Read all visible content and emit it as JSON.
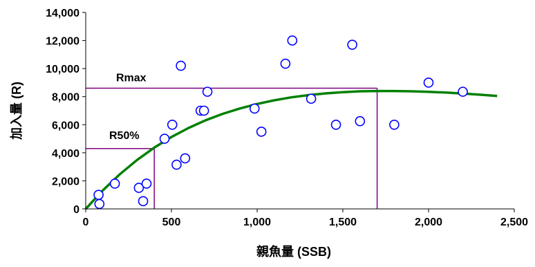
{
  "chart_data": {
    "type": "scatter",
    "xlabel": "親魚量 (SSB)",
    "ylabel": "加入量 (R)",
    "xlim": [
      0,
      2500
    ],
    "ylim": [
      0,
      14000
    ],
    "x_ticks": [
      "0",
      "500",
      "1,000",
      "1,500",
      "2,000",
      "2,500"
    ],
    "y_ticks": [
      "0",
      "2,000",
      "4,000",
      "6,000",
      "8,000",
      "10,000",
      "12,000",
      "14,000"
    ],
    "grid": false,
    "legend": "none",
    "series": [
      {
        "type": "scatter",
        "marker": "open-circle",
        "color": "#0000ff",
        "points": [
          [
            75,
            1000
          ],
          [
            80,
            350
          ],
          [
            170,
            1800
          ],
          [
            310,
            1500
          ],
          [
            335,
            550
          ],
          [
            355,
            1800
          ],
          [
            460,
            5000
          ],
          [
            505,
            6000
          ],
          [
            530,
            3150
          ],
          [
            555,
            10200
          ],
          [
            580,
            3600
          ],
          [
            670,
            7000
          ],
          [
            690,
            7000
          ],
          [
            710,
            8350
          ],
          [
            985,
            7150
          ],
          [
            1025,
            5500
          ],
          [
            1165,
            10350
          ],
          [
            1205,
            12000
          ],
          [
            1315,
            7850
          ],
          [
            1460,
            6000
          ],
          [
            1555,
            11700
          ],
          [
            1600,
            6250
          ],
          [
            1800,
            6000
          ],
          [
            2000,
            9000
          ],
          [
            2200,
            8350
          ]
        ]
      },
      {
        "type": "line",
        "color": "#008000",
        "model": "Ricker",
        "curve": [
          [
            0,
            0
          ],
          [
            100,
            1320
          ],
          [
            200,
            2480
          ],
          [
            300,
            3490
          ],
          [
            400,
            4370
          ],
          [
            500,
            5120
          ],
          [
            600,
            5770
          ],
          [
            700,
            6320
          ],
          [
            800,
            6780
          ],
          [
            900,
            7160
          ],
          [
            1000,
            7480
          ],
          [
            1100,
            7740
          ],
          [
            1200,
            7950
          ],
          [
            1300,
            8110
          ],
          [
            1400,
            8230
          ],
          [
            1500,
            8320
          ],
          [
            1600,
            8380
          ],
          [
            1700,
            8400
          ],
          [
            1800,
            8400
          ],
          [
            1900,
            8380
          ],
          [
            2000,
            8340
          ],
          [
            2100,
            8290
          ],
          [
            2200,
            8220
          ],
          [
            2300,
            8140
          ],
          [
            2400,
            8050
          ]
        ]
      }
    ],
    "annotations": [
      {
        "label": "Rmax",
        "value_y": 8600,
        "value_x": 1700,
        "color": "#800080"
      },
      {
        "label": "R50%",
        "value_y": 4300,
        "value_x": 400,
        "color": "#800080"
      }
    ]
  }
}
